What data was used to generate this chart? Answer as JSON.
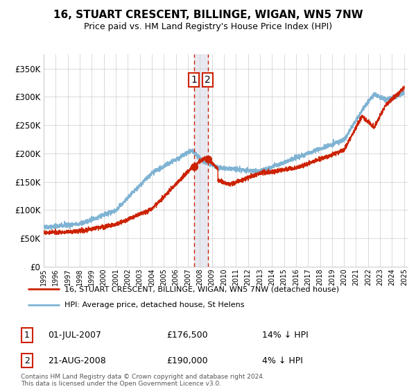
{
  "title": "16, STUART CRESCENT, BILLINGE, WIGAN, WN5 7NW",
  "subtitle": "Price paid vs. HM Land Registry's House Price Index (HPI)",
  "legend_line1": "16, STUART CRESCENT, BILLINGE, WIGAN, WN5 7NW (detached house)",
  "legend_line2": "HPI: Average price, detached house, St Helens",
  "transaction1_date": "01-JUL-2007",
  "transaction1_price": "£176,500",
  "transaction1_hpi": "14% ↓ HPI",
  "transaction2_date": "21-AUG-2008",
  "transaction2_price": "£190,000",
  "transaction2_hpi": "4% ↓ HPI",
  "footer": "Contains HM Land Registry data © Crown copyright and database right 2024.\nThis data is licensed under the Open Government Licence v3.0.",
  "ylim": [
    0,
    375000
  ],
  "yticks": [
    0,
    50000,
    100000,
    150000,
    200000,
    250000,
    300000,
    350000
  ],
  "transaction1_x": 2007.5,
  "transaction2_x": 2008.65,
  "hpi_color": "#7fb3d3",
  "price_color": "#cc2200",
  "vline_color": "#cc2200",
  "shade_color": "#e8e8f0",
  "background_color": "#ffffff",
  "grid_color": "#cccccc"
}
